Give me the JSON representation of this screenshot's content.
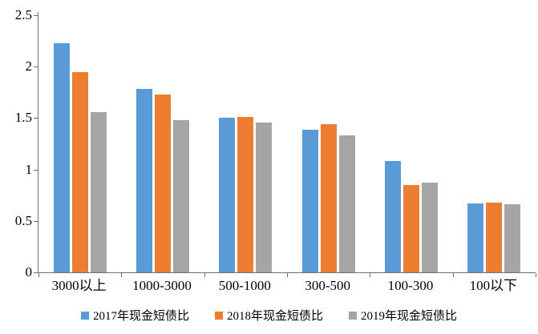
{
  "chart_data": {
    "type": "bar",
    "title": "",
    "categories": [
      "3000以上",
      "1000-3000",
      "500-1000",
      "300-500",
      "100-300",
      "100以下"
    ],
    "series": [
      {
        "name": "2017年现金短债比",
        "color": "#5B9BD5",
        "values": [
          2.23,
          1.78,
          1.5,
          1.39,
          1.08,
          0.67
        ]
      },
      {
        "name": "2018年现金短债比",
        "color": "#ED7D31",
        "values": [
          1.95,
          1.73,
          1.51,
          1.44,
          0.85,
          0.68
        ]
      },
      {
        "name": "2019年现金短债比",
        "color": "#A5A5A5",
        "values": [
          1.56,
          1.48,
          1.46,
          1.33,
          0.87,
          0.66
        ]
      }
    ],
    "ylim": [
      0,
      2.5
    ],
    "yticks": [
      0,
      0.5,
      1,
      1.5,
      2,
      2.5
    ],
    "ytick_labels": [
      "0",
      "0.5",
      "1",
      "1.5",
      "2",
      "2.5"
    ],
    "grid": false,
    "legend_position": "bottom",
    "axis_color": "#6f6f6f",
    "background_color": "#ffffff"
  }
}
